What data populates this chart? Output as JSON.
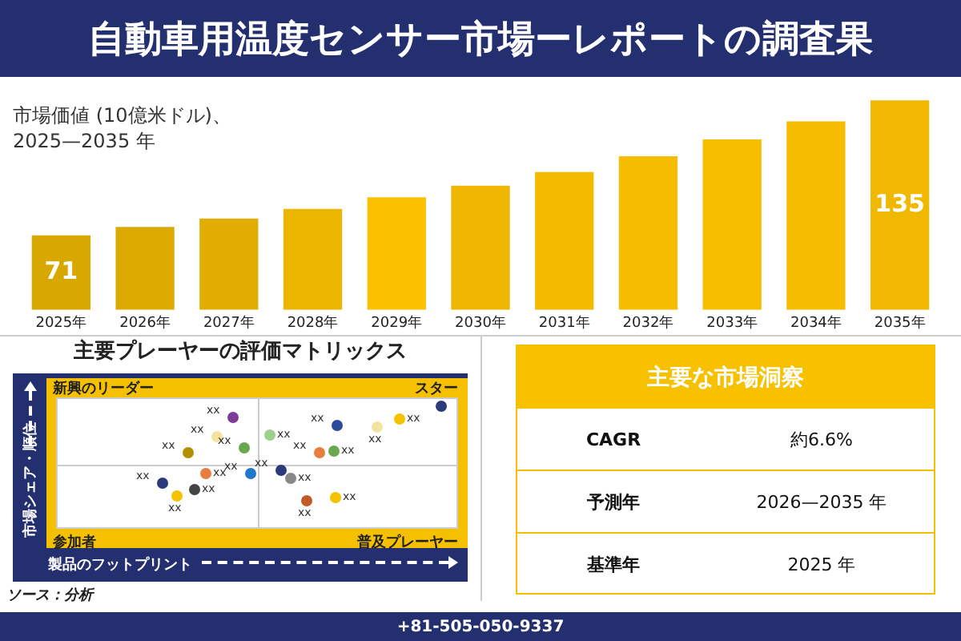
{
  "chart_data": [
    {
      "type": "bar",
      "title": "自動車用温度センサー市場ーレポートの調査果",
      "subtitle": "市場価値 (10億米ドル)、\n2025—2035 年",
      "categories": [
        "2025年",
        "2026年",
        "2027年",
        "2028年",
        "2029年",
        "2030年",
        "2031年",
        "2032年",
        "2033年",
        "2034年",
        "2035年"
      ],
      "values": [
        71,
        75,
        79,
        83.5,
        89,
        94.5,
        101,
        108.5,
        116.5,
        125,
        135
      ],
      "value_labels": [
        "71",
        null,
        null,
        null,
        null,
        null,
        null,
        null,
        null,
        null,
        "135"
      ],
      "colors": [
        "#d9a800",
        "#dcaa00",
        "#e0ad00",
        "#ecb600",
        "#fbc000",
        "#efb700",
        "#f3ba00",
        "#f5bc00",
        "#f7be00",
        "#f5bc00",
        "#f0b800"
      ],
      "tick_labels": "x",
      "grid": false,
      "legend": false
    },
    {
      "type": "other",
      "title": "主要プレーヤーの評価マトリックス",
      "xlabel": "製品のフットプリント",
      "ylabel": "市場シェア・順位",
      "annotations": [
        "新興のリーダー",
        "スター",
        "参加者",
        "普及プレーヤー",
        "ソース：分析",
        "xx",
        "xx",
        "xx",
        "xx",
        "xx",
        "xx",
        "xx",
        "xx",
        "xx",
        "xx",
        "xx",
        "xx",
        "xx",
        "xx",
        "xx",
        "xx",
        "xx",
        "xx",
        "xx"
      ]
    },
    {
      "type": "other",
      "title": "主要な市場洞察",
      "annotations": [
        "CAGR",
        "約6.6%",
        "予測年",
        "2026—2035 年",
        "基準年",
        "2025 年",
        "+81-505-050-9337"
      ]
    }
  ]
}
